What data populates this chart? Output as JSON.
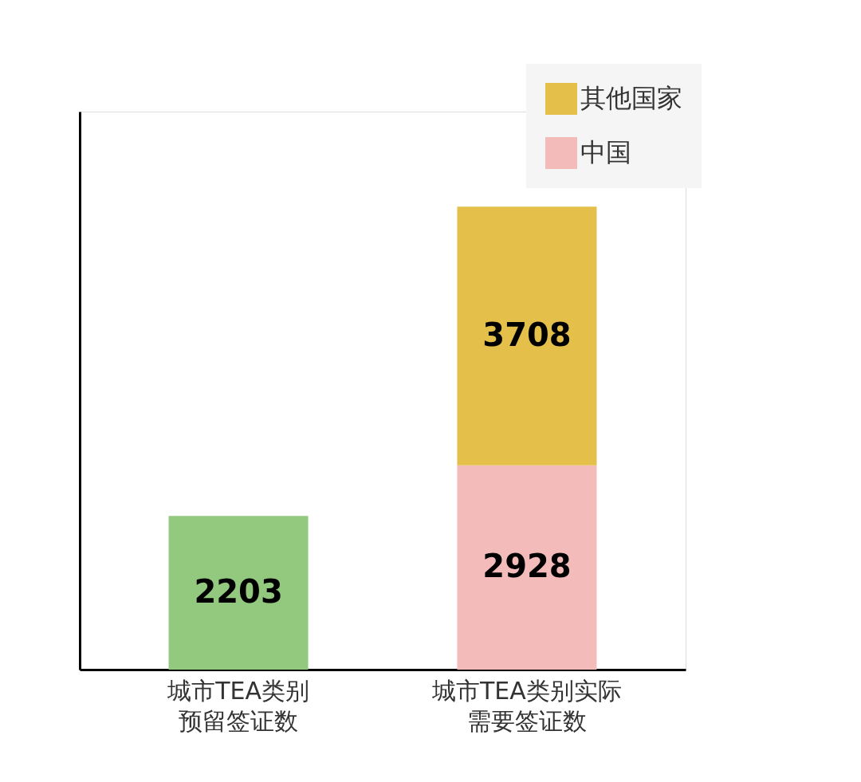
{
  "chart_data": {
    "type": "bar",
    "stacked": true,
    "categories": [
      "城市TEA类别预留签证数",
      "城市TEA类别实际需要签证数"
    ],
    "series": [
      {
        "color": "#92c97e",
        "values": [
          2203,
          null
        ]
      },
      {
        "name": "中国",
        "color": "#f4bbbb",
        "values": [
          null,
          2928
        ]
      },
      {
        "name": "其他国家",
        "color": "#e4bf4a",
        "values": [
          null,
          3708
        ]
      }
    ],
    "ylim": [
      0,
      8000
    ],
    "tick_labels": "x",
    "data_labels": true,
    "legend": "top right"
  }
}
